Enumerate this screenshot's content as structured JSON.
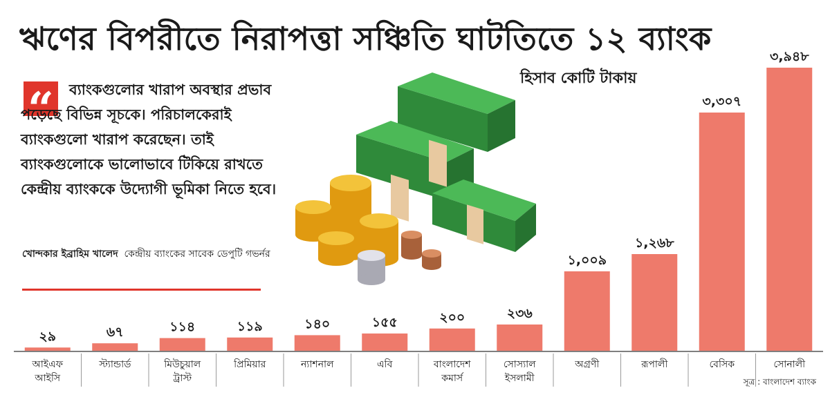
{
  "title": "ঋণের বিপরীতে নিরাপত্তা সঞ্চিতি ঘাটতিতে ১২ ব্যাংক",
  "unit": "হিসাব কোটি টাকায়",
  "quote": {
    "text": "ব্যাংকগুলোর খারাপ অবস্থার প্রভাব পড়েছে বিভিন্ন সূচকে। পরিচালকেরাই ব্যাংকগুলো খারাপ করেছেন। তাই ব্যাংকগুলোকে ভালোভাবে টিকিয়ে রাখতে কেন্দ্রীয় ব্যাংককে উদ্যোগী ভূমিকা নিতে হবে।",
    "author_name": "খোন্দকার ইব্রাহিম খালেদ",
    "author_title": "কেন্দ্রীয় ব্যাংকের সাবেক ডেপুটি গভর্নর"
  },
  "source": "সূত্র : বাংলাদেশ ব্যাংক",
  "colors": {
    "bar": "#ee7a6b",
    "accent": "#e0352b",
    "cash_green": "#3fa64a",
    "coin_gold": "#f3b51c"
  },
  "chart_data": {
    "type": "bar",
    "categories": [
      "আইএফ আইসি",
      "স্ট্যান্ডার্ড",
      "মিউচুয়াল ট্রাস্ট",
      "প্রিমিয়ার",
      "ন্যাশনাল",
      "এবি",
      "বাংলাদেশ কমার্স",
      "সোস্যাল ইসলামী",
      "অগ্রণী",
      "রূপালী",
      "বেসিক",
      "সোনালী"
    ],
    "values": [
      29,
      67,
      114,
      119,
      140,
      155,
      200,
      236,
      1009,
      1268,
      3307,
      3948
    ],
    "value_labels": [
      "২৯",
      "৬৭",
      "১১৪",
      "১১৯",
      "১৪০",
      "১৫৫",
      "২০০",
      "২৩৬",
      "১,০০৯",
      "১,২৬৮",
      "৩,৩০৭",
      "৩,৯৪৮"
    ],
    "scale": "broken",
    "ylim": [
      0,
      4100
    ],
    "grid": false,
    "legend": "none"
  }
}
